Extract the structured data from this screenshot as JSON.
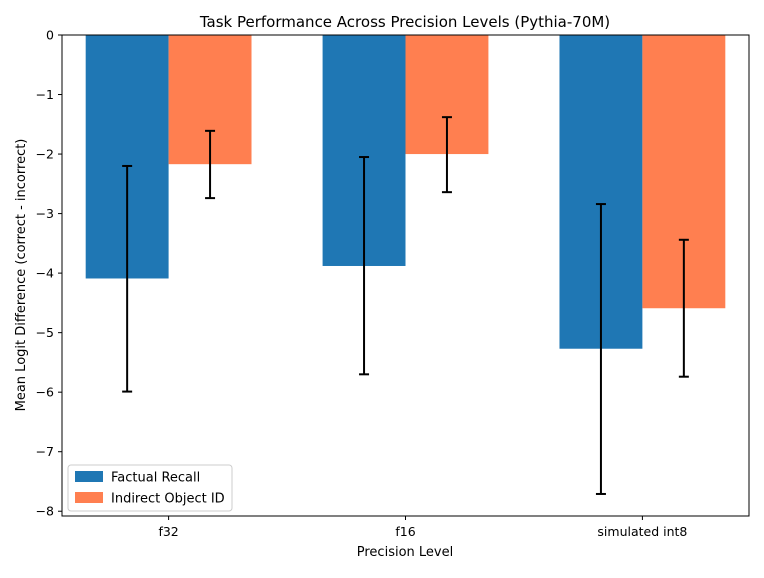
{
  "chart_data": {
    "type": "bar",
    "title": "Task Performance Across Precision Levels (Pythia-70M)",
    "xlabel": "Precision Level",
    "ylabel": "Mean Logit Difference (correct - incorrect)",
    "categories": [
      "f32",
      "f16",
      "simulated int8"
    ],
    "ylim": [
      -8.08,
      0
    ],
    "yticks": [
      0,
      -1,
      -2,
      -3,
      -4,
      -5,
      -6,
      -7,
      -8
    ],
    "ytick_labels": [
      "0",
      "−1",
      "−2",
      "−3",
      "−4",
      "−5",
      "−6",
      "−7",
      "−8"
    ],
    "grid": false,
    "legend_position": "lower-left",
    "series": [
      {
        "name": "Factual Recall",
        "color": "#1f77b4",
        "values": [
          -4.09,
          -3.88,
          -5.27
        ],
        "error_low": [
          -5.99,
          -5.7,
          -7.71
        ],
        "error_high": [
          -2.2,
          -2.05,
          -2.84
        ]
      },
      {
        "name": "Indirect Object ID",
        "color": "#ff7f50",
        "values": [
          -2.17,
          -2.0,
          -4.59
        ],
        "error_low": [
          -2.74,
          -2.64,
          -5.74
        ],
        "error_high": [
          -1.61,
          -1.38,
          -3.44
        ]
      }
    ]
  }
}
